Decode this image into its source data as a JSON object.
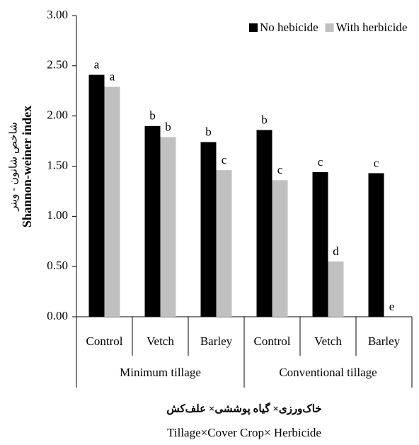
{
  "chart_data": {
    "type": "bar",
    "y_axis_label": [
      "شاخص شانون - وینر",
      "Shannon-weiner index"
    ],
    "x_axis_label": [
      "خاک‌ورزی× گیاه پوششی× علف‌کش",
      "Tillage×Cover Crop× Herbicide"
    ],
    "categories": [
      "Control",
      "Vetch",
      "Barley",
      "Control",
      "Vetch",
      "Barley"
    ],
    "groups": [
      "Minimum tillage",
      "Conventional tillage"
    ],
    "series": [
      {
        "name": "No hebicide",
        "color": "#000000",
        "values": [
          2.41,
          1.9,
          1.74,
          1.86,
          1.44,
          1.43
        ],
        "letters": [
          "a",
          "b",
          "b",
          "b",
          "c",
          "c"
        ]
      },
      {
        "name": "With herbicide",
        "color": "#c0c0c0",
        "values": [
          2.29,
          1.79,
          1.46,
          1.36,
          0.55,
          0
        ],
        "letters": [
          "a",
          "b",
          "c",
          "c",
          "d",
          "e"
        ]
      }
    ],
    "ylim": [
      0,
      3
    ],
    "yticks": [
      {
        "value": 0,
        "label": "0.00"
      },
      {
        "value": 0.5,
        "label": "0.50"
      },
      {
        "value": 1,
        "label": "1.00"
      },
      {
        "value": 1.5,
        "label": "1.50"
      },
      {
        "value": 2,
        "label": "2.00"
      },
      {
        "value": 2.5,
        "label": "2.50"
      },
      {
        "value": 3,
        "label": "3.00"
      }
    ],
    "grid": false,
    "legend": "top-right"
  }
}
